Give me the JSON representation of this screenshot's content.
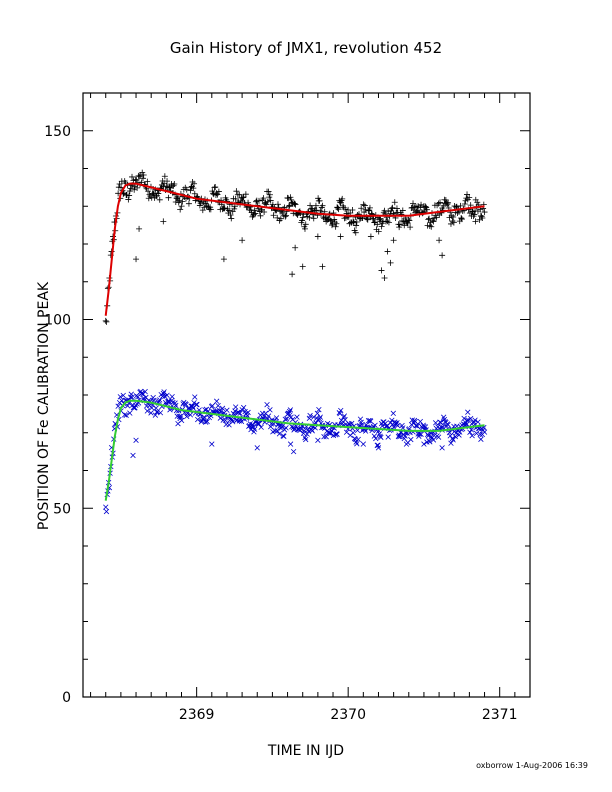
{
  "chart_data": {
    "type": "scatter",
    "title": "Gain History of JMX1, revolution 452",
    "xlabel": "TIME IN IJD",
    "ylabel": "POSITION OF Fe CALIBRATION PEAK",
    "xlim": [
      2368.25,
      2371.2
    ],
    "ylim": [
      0,
      160
    ],
    "xticks": [
      "2369",
      "2370",
      "2371"
    ],
    "yticks": [
      "0",
      "50",
      "100",
      "150"
    ],
    "grid": false,
    "legend": "none",
    "footer": "oxborrow   1-Aug-2006 16:39",
    "series": [
      {
        "marker": "plus",
        "color": "#000000",
        "x_start": 2368.4,
        "x_end": 2370.9,
        "fit_color": "#dd0000",
        "fit": [
          [
            2368.4,
            101
          ],
          [
            2368.42,
            108
          ],
          [
            2368.44,
            116
          ],
          [
            2368.46,
            124
          ],
          [
            2368.48,
            130
          ],
          [
            2368.5,
            133.5
          ],
          [
            2368.53,
            135.5
          ],
          [
            2368.56,
            136
          ],
          [
            2368.6,
            136
          ],
          [
            2368.7,
            135
          ],
          [
            2368.8,
            134
          ],
          [
            2368.9,
            133
          ],
          [
            2369.0,
            132
          ],
          [
            2369.2,
            131
          ],
          [
            2369.4,
            130
          ],
          [
            2369.6,
            129
          ],
          [
            2369.8,
            128
          ],
          [
            2370.0,
            127.5
          ],
          [
            2370.2,
            127.5
          ],
          [
            2370.4,
            127.5
          ],
          [
            2370.6,
            128.5
          ],
          [
            2370.8,
            129.5
          ],
          [
            2370.9,
            130
          ]
        ],
        "outliers": [
          [
            2368.6,
            116
          ],
          [
            2368.62,
            124
          ],
          [
            2368.78,
            126
          ],
          [
            2369.18,
            116
          ],
          [
            2369.3,
            121
          ],
          [
            2369.63,
            112
          ],
          [
            2369.65,
            119
          ],
          [
            2369.7,
            114
          ],
          [
            2369.8,
            122
          ],
          [
            2369.83,
            114
          ],
          [
            2369.95,
            122
          ],
          [
            2370.05,
            123
          ],
          [
            2370.15,
            122
          ],
          [
            2370.22,
            113
          ],
          [
            2370.24,
            111
          ],
          [
            2370.26,
            118
          ],
          [
            2370.28,
            115
          ],
          [
            2370.3,
            121
          ],
          [
            2370.6,
            121
          ],
          [
            2370.62,
            117
          ],
          [
            2370.84,
            126
          ]
        ]
      },
      {
        "marker": "cross",
        "color": "#0000cc",
        "x_start": 2368.4,
        "x_end": 2370.9,
        "fit_color": "#33cc33",
        "fit": [
          [
            2368.4,
            52
          ],
          [
            2368.42,
            57
          ],
          [
            2368.44,
            63
          ],
          [
            2368.46,
            69
          ],
          [
            2368.48,
            73.5
          ],
          [
            2368.5,
            76.5
          ],
          [
            2368.53,
            78
          ],
          [
            2368.56,
            78.5
          ],
          [
            2368.6,
            78.5
          ],
          [
            2368.7,
            78
          ],
          [
            2368.8,
            77
          ],
          [
            2368.9,
            76
          ],
          [
            2369.0,
            75.5
          ],
          [
            2369.2,
            74.5
          ],
          [
            2369.4,
            73.5
          ],
          [
            2369.6,
            72.5
          ],
          [
            2369.8,
            72
          ],
          [
            2370.0,
            71.5
          ],
          [
            2370.2,
            71
          ],
          [
            2370.4,
            70.5
          ],
          [
            2370.6,
            70.5
          ],
          [
            2370.8,
            71.5
          ],
          [
            2370.9,
            72
          ]
        ],
        "outliers": [
          [
            2368.58,
            64
          ],
          [
            2368.6,
            68
          ],
          [
            2369.1,
            67
          ],
          [
            2369.4,
            66
          ],
          [
            2369.62,
            67
          ],
          [
            2369.64,
            65
          ],
          [
            2369.8,
            68
          ],
          [
            2370.1,
            67
          ],
          [
            2370.2,
            66
          ],
          [
            2370.5,
            67
          ],
          [
            2370.62,
            66
          ]
        ]
      }
    ]
  }
}
